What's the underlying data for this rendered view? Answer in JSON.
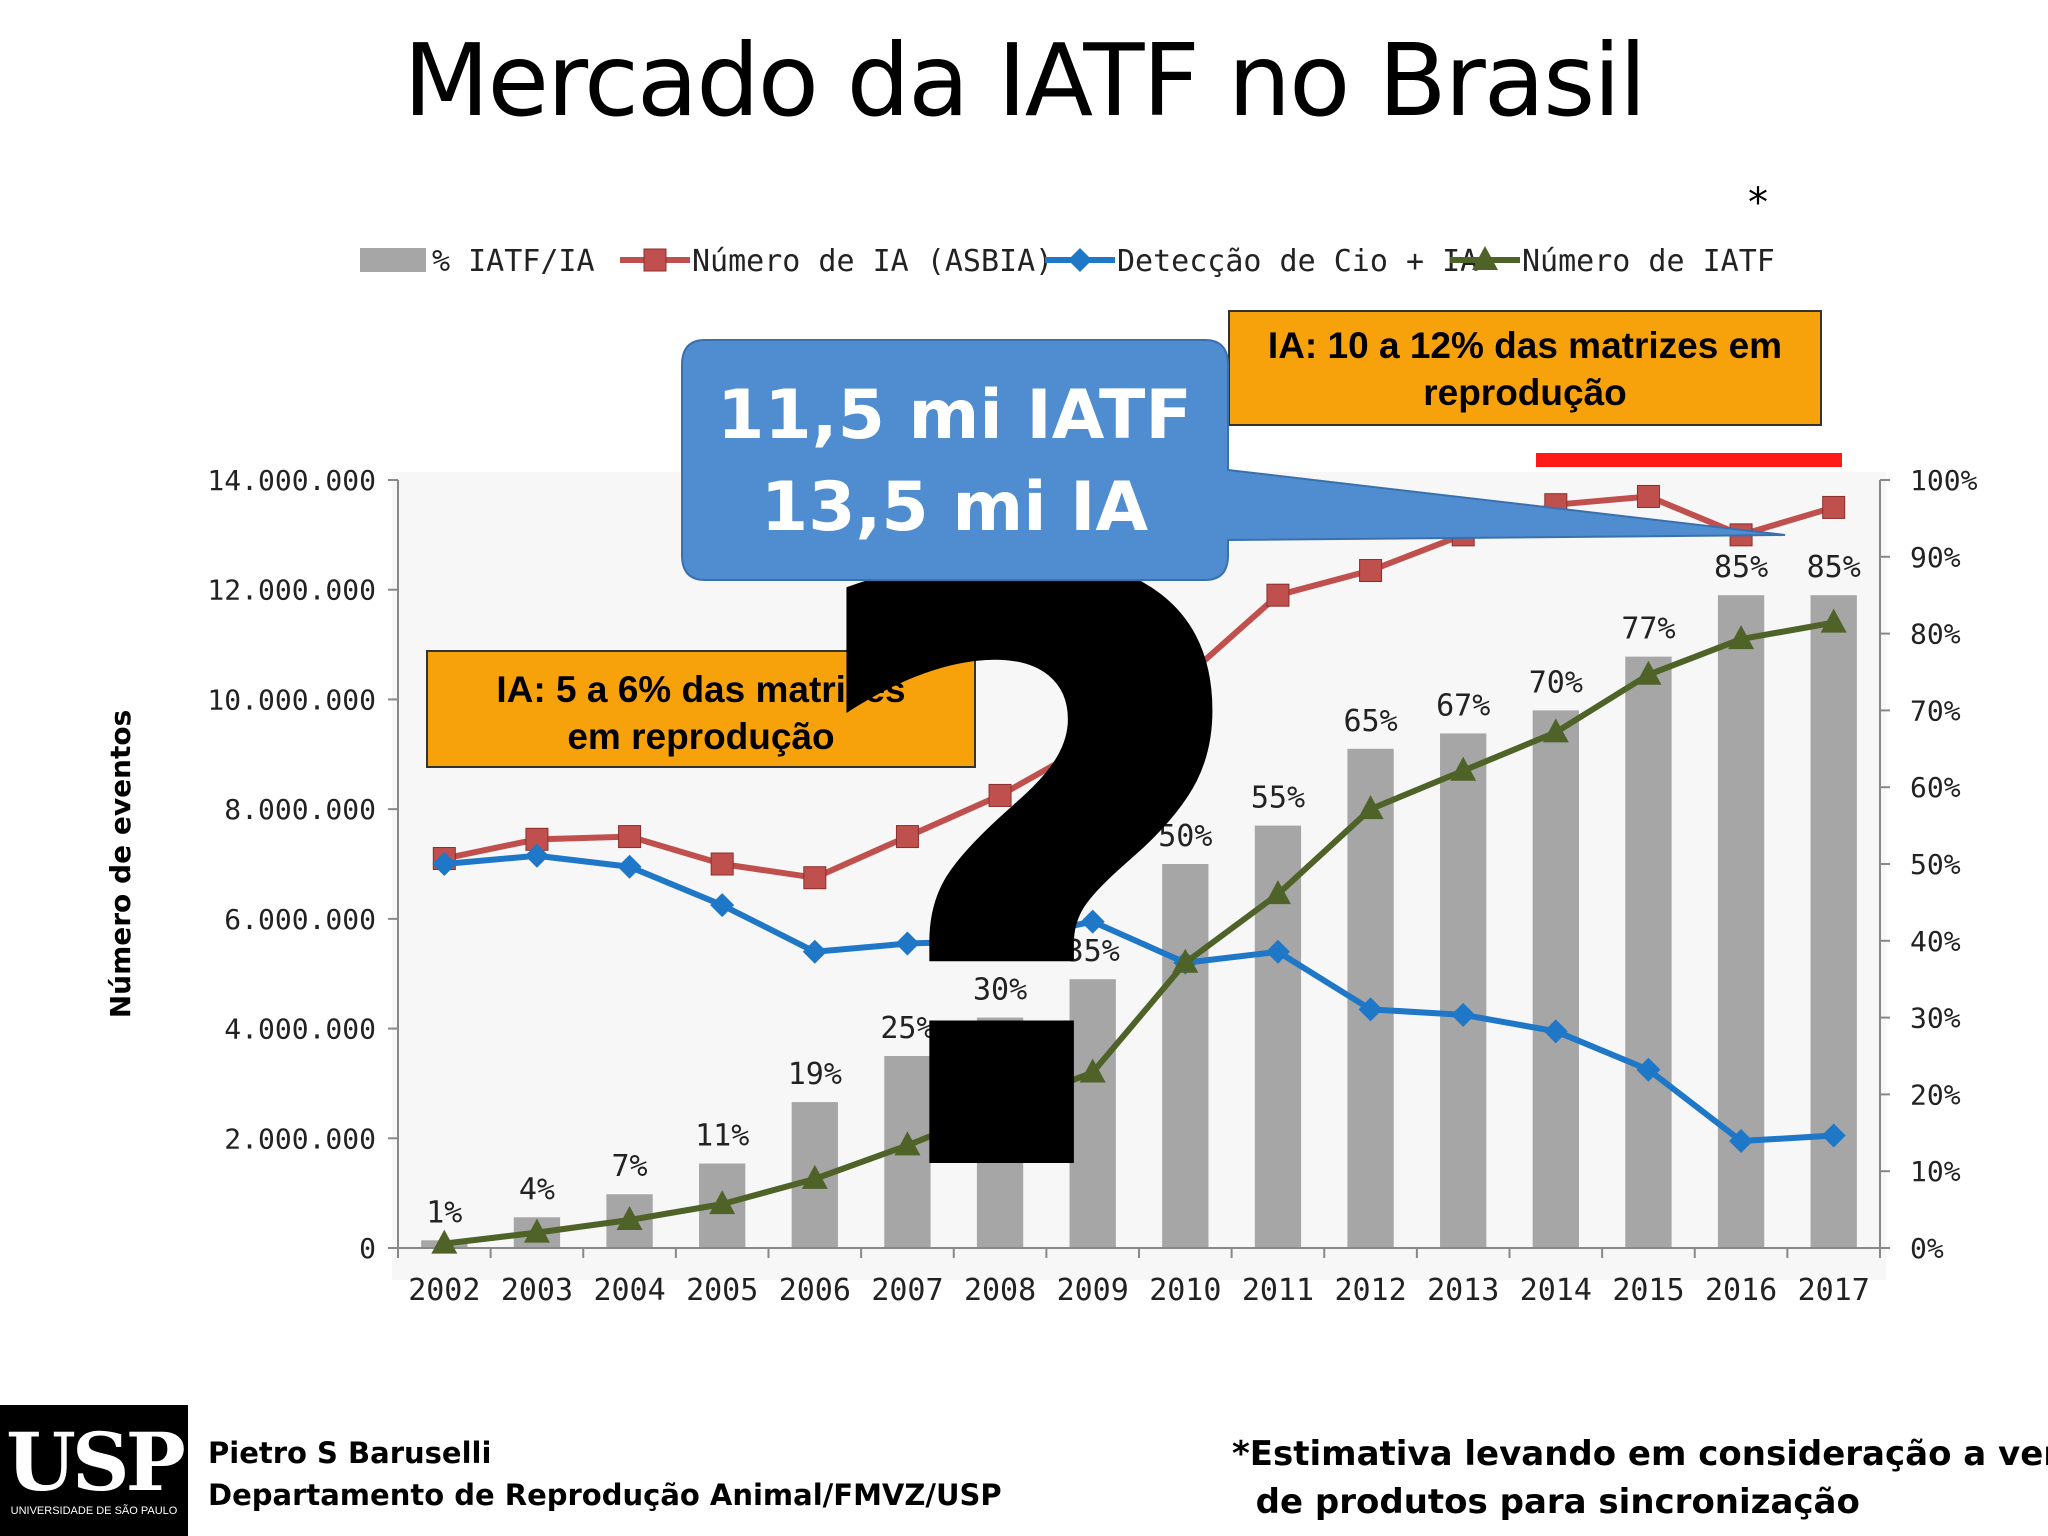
{
  "slide": {
    "title": "Mercado da IATF no Brasil",
    "asterisk": "*"
  },
  "annotations": {
    "box_top": [
      "IA: 10 a 12% das matrizes em",
      "reprodução"
    ],
    "box_left": [
      "IA: 5 a 6% das matrizes",
      "em reprodução"
    ],
    "callout": [
      "11,5 mi IATF",
      "13,5 mi IA"
    ],
    "question_mark": "?",
    "red_line_color": "#ff1a1a"
  },
  "footer": {
    "logo_text": "USP",
    "logo_subtext": "UNIVERSIDADE DE SÃO PAULO",
    "author": "Pietro S Baruselli",
    "department": "Departamento de Reprodução Animal/FMVZ/USP",
    "note_line1": "*Estimativa levando em consideração a venda",
    "note_line2": "  de produtos para sincronização"
  },
  "chart_data": {
    "type": "bar",
    "categories": [
      "2002",
      "2003",
      "2004",
      "2005",
      "2006",
      "2007",
      "2008",
      "2009",
      "2010",
      "2011",
      "2012",
      "2013",
      "2014",
      "2015",
      "2016",
      "2017"
    ],
    "ylabel": "Número de eventos",
    "ylim": [
      0,
      14000000
    ],
    "y_ticks": [
      "0",
      "2.000.000",
      "4.000.000",
      "6.000.000",
      "8.000.000",
      "10.000.000",
      "12.000.000",
      "14.000.000"
    ],
    "y2lim": [
      0,
      100
    ],
    "y2_ticks": [
      "0%",
      "10%",
      "20%",
      "30%",
      "40%",
      "50%",
      "60%",
      "70%",
      "80%",
      "90%",
      "100%"
    ],
    "legend_placement": "top",
    "series": [
      {
        "name": "% IATF/IA",
        "type": "bar",
        "axis": "right",
        "color": "#a6a6a6",
        "values": [
          1,
          4,
          7,
          11,
          19,
          25,
          30,
          35,
          50,
          55,
          65,
          67,
          70,
          77,
          85,
          85
        ],
        "labels": [
          "1%",
          "4%",
          "7%",
          "11%",
          "19%",
          "25%",
          "30%",
          "35%",
          "50%",
          "55%",
          "65%",
          "67%",
          "70%",
          "77%",
          "85%",
          "85%"
        ]
      },
      {
        "name": "Número de IA (ASBIA)",
        "type": "line",
        "marker": "square",
        "color": "#c0504d",
        "values": [
          7100000,
          7450000,
          7500000,
          7000000,
          6750000,
          7500000,
          8250000,
          9200000,
          10400000,
          11900000,
          12350000,
          13000000,
          13550000,
          13700000,
          13000000,
          13500000
        ]
      },
      {
        "name": "Detecção de Cio + IA",
        "type": "line",
        "marker": "diamond",
        "color": "#1f77c7",
        "values": [
          7000000,
          7150000,
          6950000,
          6250000,
          5400000,
          5550000,
          5600000,
          5950000,
          5200000,
          5400000,
          4350000,
          4250000,
          3950000,
          3250000,
          1950000,
          2050000
        ]
      },
      {
        "name": "Número de IATF",
        "type": "line",
        "marker": "triangle",
        "color": "#4f6228",
        "values": [
          80000,
          280000,
          510000,
          800000,
          1260000,
          1870000,
          2550000,
          3200000,
          5200000,
          6450000,
          8000000,
          8700000,
          9400000,
          10450000,
          11100000,
          11400000
        ]
      }
    ]
  }
}
